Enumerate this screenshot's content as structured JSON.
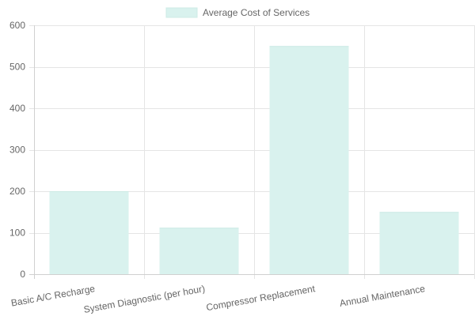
{
  "chart_data": {
    "type": "bar",
    "categories": [
      "Basic A/C Recharge",
      "System Diagnostic (per hour)",
      "Compressor Replacement",
      "Annual Maintenance"
    ],
    "series": [
      {
        "name": "Average Cost of Services",
        "values": [
          200,
          112,
          550,
          150
        ],
        "color": "#d9f2ee",
        "border_color": "#cdebe5"
      }
    ],
    "ylim": [
      0,
      600
    ],
    "yticks": [
      0,
      100,
      200,
      300,
      400,
      500,
      600
    ],
    "grid": true,
    "legend": "top-center",
    "title": "",
    "xlabel": "",
    "ylabel": ""
  }
}
